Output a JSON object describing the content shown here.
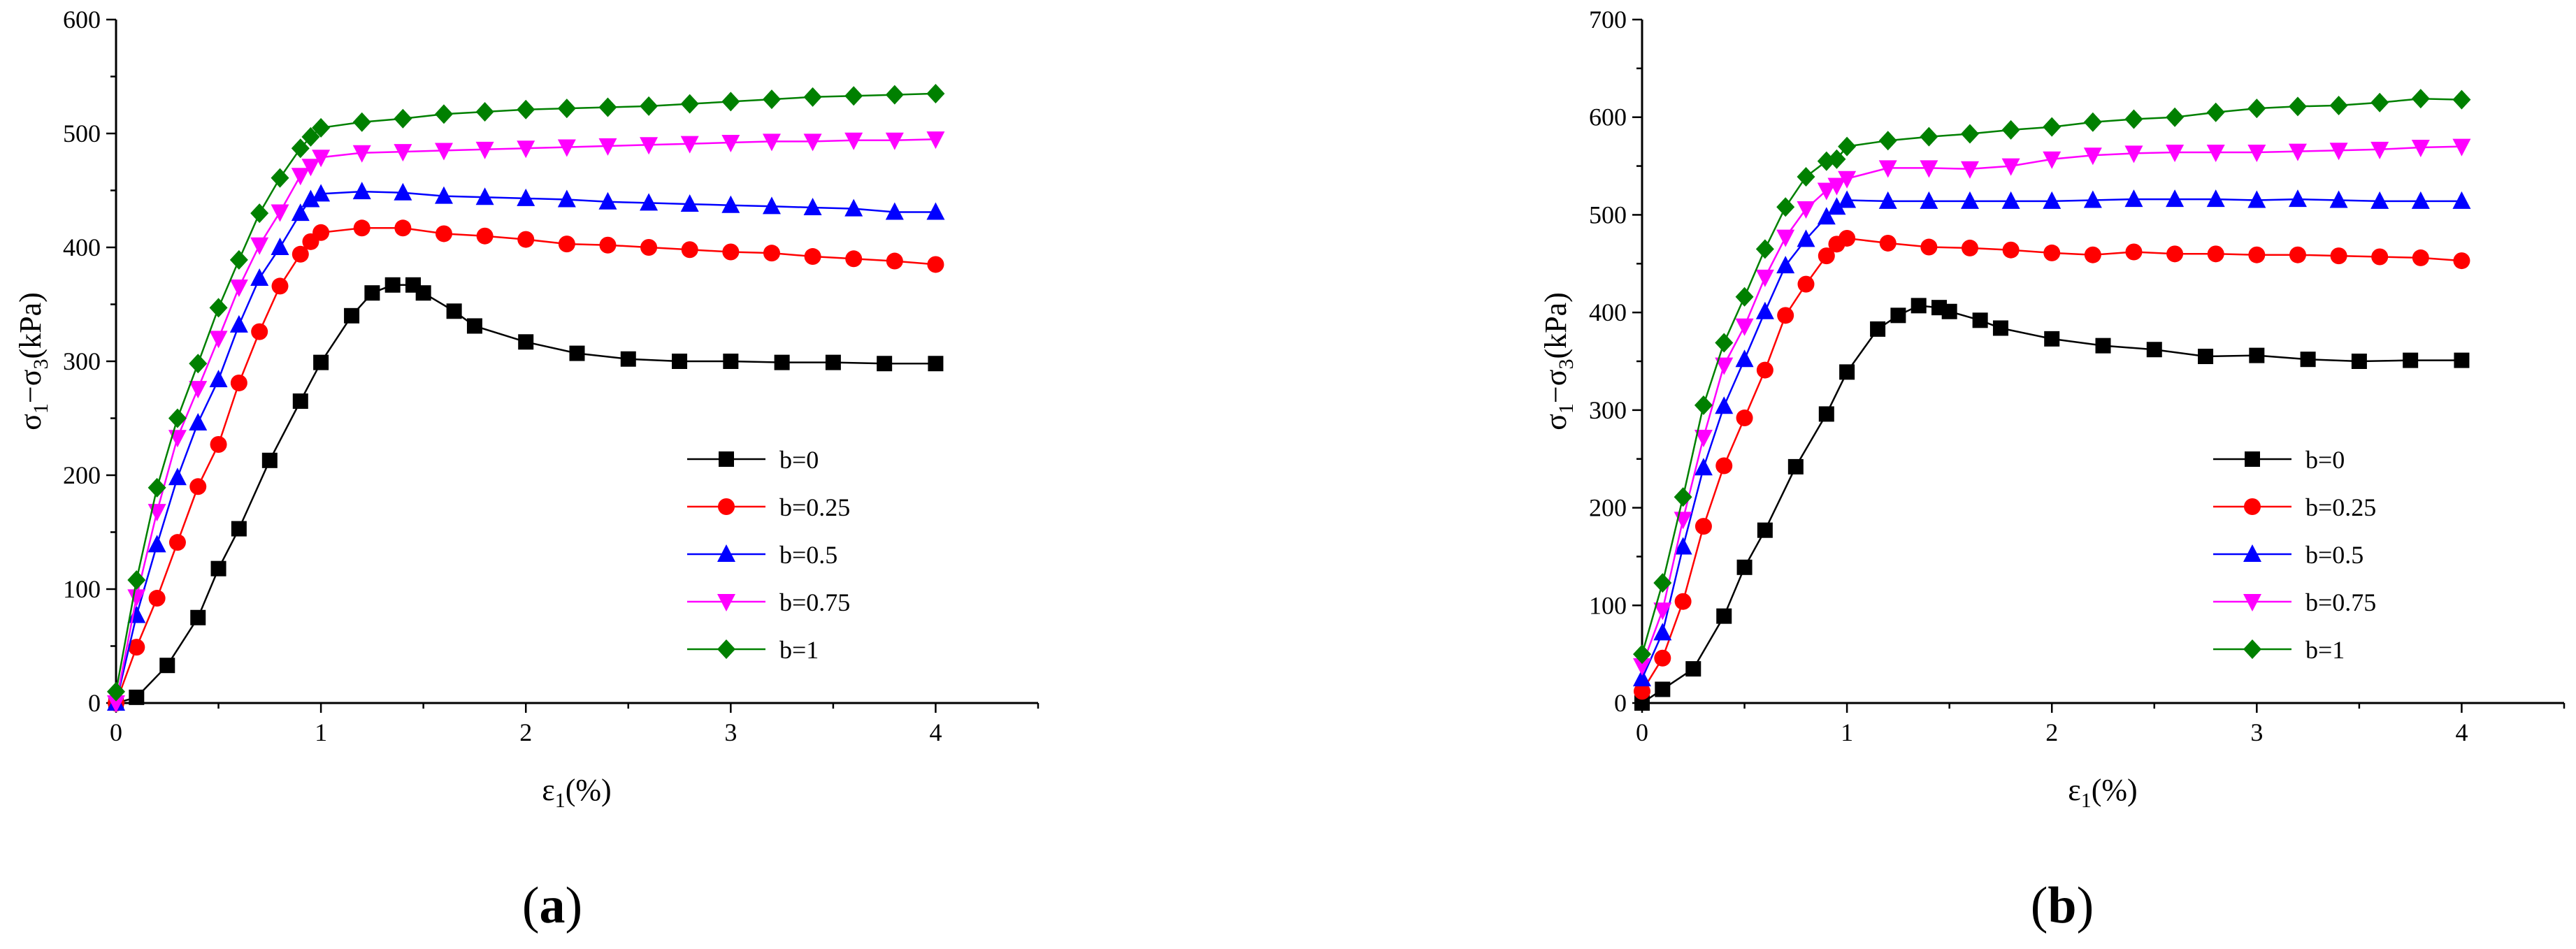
{
  "figure": {
    "panels": [
      {
        "label_open": "(",
        "label_letter": "a",
        "label_close": ")"
      },
      {
        "label_open": "(",
        "label_letter": "b",
        "label_close": ")"
      }
    ]
  },
  "axis_text": {
    "ylabel": {
      "sigma1": "σ",
      "sub1": "1",
      "minus": "−σ",
      "sub3": "3",
      "unit": "(kPa)"
    },
    "xlabel": {
      "eps": "ε",
      "sub1": "1",
      "unit": "(%)"
    }
  },
  "chart_data": [
    {
      "type": "line",
      "panel": "a",
      "xlim": [
        0,
        4.5
      ],
      "ylim": [
        0,
        600
      ],
      "xticks": [
        0,
        1,
        2,
        3,
        4
      ],
      "yticks": [
        0,
        100,
        200,
        300,
        400,
        500,
        600
      ],
      "xtick_labels": [
        "0",
        "1",
        "2",
        "3",
        "4"
      ],
      "ytick_labels": [
        "0",
        "100",
        "200",
        "300",
        "400",
        "500",
        "600"
      ],
      "xlabel": "ε1(%)",
      "ylabel": "σ1−σ3(kPa)",
      "legend": "right-middle",
      "series": [
        {
          "name": "b=0",
          "color": "#000000",
          "marker": "square",
          "x": [
            0,
            0.1,
            0.25,
            0.4,
            0.5,
            0.6,
            0.75,
            0.9,
            1.0,
            1.15,
            1.25,
            1.35,
            1.45,
            1.5,
            1.65,
            1.75,
            2.0,
            2.25,
            2.5,
            2.75,
            3.0,
            3.25,
            3.5,
            3.75,
            4.0
          ],
          "y": [
            0,
            5,
            33,
            75,
            118,
            153,
            213,
            265,
            299,
            340,
            360,
            367,
            367,
            360,
            344,
            331,
            317,
            307,
            302,
            300,
            300,
            299,
            299,
            298,
            298
          ]
        },
        {
          "name": "b=0.25",
          "color": "#ff0000",
          "marker": "circle",
          "x": [
            0,
            0.1,
            0.2,
            0.3,
            0.4,
            0.5,
            0.6,
            0.7,
            0.8,
            0.9,
            0.95,
            1.0,
            1.2,
            1.4,
            1.6,
            1.8,
            2.0,
            2.2,
            2.4,
            2.6,
            2.8,
            3.0,
            3.2,
            3.4,
            3.6,
            3.8,
            4.0
          ],
          "y": [
            0,
            49,
            92,
            141,
            190,
            227,
            281,
            326,
            366,
            394,
            405,
            413,
            417,
            417,
            412,
            410,
            407,
            403,
            402,
            400,
            398,
            396,
            395,
            392,
            390,
            388,
            385
          ]
        },
        {
          "name": "b=0.5",
          "color": "#0000ff",
          "marker": "triangle-up",
          "x": [
            0,
            0.1,
            0.2,
            0.3,
            0.4,
            0.5,
            0.6,
            0.7,
            0.8,
            0.9,
            0.95,
            1.0,
            1.2,
            1.4,
            1.6,
            1.8,
            2.0,
            2.2,
            2.4,
            2.6,
            2.8,
            3.0,
            3.2,
            3.4,
            3.6,
            3.8,
            4.0
          ],
          "y": [
            0,
            77,
            139,
            198,
            246,
            284,
            332,
            373,
            400,
            430,
            442,
            447,
            449,
            448,
            445,
            444,
            443,
            442,
            440,
            439,
            438,
            437,
            436,
            435,
            434,
            431,
            431
          ]
        },
        {
          "name": "b=0.75",
          "color": "#ff00ff",
          "marker": "triangle-down",
          "x": [
            0,
            0.1,
            0.2,
            0.3,
            0.4,
            0.5,
            0.6,
            0.7,
            0.8,
            0.9,
            0.95,
            1.0,
            1.2,
            1.4,
            1.6,
            1.8,
            2.0,
            2.2,
            2.4,
            2.6,
            2.8,
            3.0,
            3.2,
            3.4,
            3.6,
            3.8,
            4.0
          ],
          "y": [
            0,
            93,
            168,
            233,
            276,
            320,
            365,
            402,
            431,
            463,
            471,
            479,
            483,
            484,
            485,
            486,
            487,
            488,
            489,
            490,
            491,
            492,
            493,
            493,
            494,
            494,
            495
          ]
        },
        {
          "name": "b=1",
          "color": "#008000",
          "marker": "diamond",
          "x": [
            0,
            0.1,
            0.2,
            0.3,
            0.4,
            0.5,
            0.6,
            0.7,
            0.8,
            0.9,
            0.95,
            1.0,
            1.2,
            1.4,
            1.6,
            1.8,
            2.0,
            2.2,
            2.4,
            2.6,
            2.8,
            3.0,
            3.2,
            3.4,
            3.6,
            3.8,
            4.0
          ],
          "y": [
            10,
            108,
            189,
            250,
            298,
            347,
            389,
            430,
            461,
            487,
            497,
            505,
            510,
            513,
            517,
            519,
            521,
            522,
            523,
            524,
            526,
            528,
            530,
            532,
            533,
            534,
            535
          ]
        }
      ]
    },
    {
      "type": "line",
      "panel": "b",
      "xlim": [
        0,
        4.5
      ],
      "ylim": [
        0,
        700
      ],
      "xticks": [
        0,
        1,
        2,
        3,
        4
      ],
      "yticks": [
        0,
        100,
        200,
        300,
        400,
        500,
        600,
        700
      ],
      "xtick_labels": [
        "0",
        "1",
        "2",
        "3",
        "4"
      ],
      "ytick_labels": [
        "0",
        "100",
        "200",
        "300",
        "400",
        "500",
        "600",
        "700"
      ],
      "xlabel": "ε1(%)",
      "ylabel": "σ1−σ3(kPa)",
      "legend": "right-middle",
      "series": [
        {
          "name": "b=0",
          "color": "#000000",
          "marker": "square",
          "x": [
            0,
            0.1,
            0.25,
            0.4,
            0.5,
            0.6,
            0.75,
            0.9,
            1.0,
            1.15,
            1.25,
            1.35,
            1.45,
            1.5,
            1.65,
            1.75,
            2.0,
            2.25,
            2.5,
            2.75,
            3.0,
            3.25,
            3.5,
            3.75,
            4.0
          ],
          "y": [
            0,
            14,
            35,
            89,
            139,
            177,
            242,
            296,
            339,
            383,
            397,
            407,
            405,
            401,
            392,
            384,
            373,
            366,
            362,
            355,
            356,
            352,
            350,
            351,
            351
          ]
        },
        {
          "name": "b=0.25",
          "color": "#ff0000",
          "marker": "circle",
          "x": [
            0,
            0.1,
            0.2,
            0.3,
            0.4,
            0.5,
            0.6,
            0.7,
            0.8,
            0.9,
            0.95,
            1.0,
            1.2,
            1.4,
            1.6,
            1.8,
            2.0,
            2.2,
            2.4,
            2.6,
            2.8,
            3.0,
            3.2,
            3.4,
            3.6,
            3.8,
            4.0
          ],
          "y": [
            12,
            46,
            104,
            181,
            243,
            292,
            341,
            397,
            429,
            458,
            470,
            476,
            471,
            467,
            466,
            464,
            461,
            459,
            462,
            460,
            460,
            459,
            459,
            458,
            457,
            456,
            453
          ]
        },
        {
          "name": "b=0.5",
          "color": "#0000ff",
          "marker": "triangle-up",
          "x": [
            0,
            0.1,
            0.2,
            0.3,
            0.4,
            0.5,
            0.6,
            0.7,
            0.8,
            0.9,
            0.95,
            1.0,
            1.2,
            1.4,
            1.6,
            1.8,
            2.0,
            2.2,
            2.4,
            2.6,
            2.8,
            3.0,
            3.2,
            3.4,
            3.6,
            3.8,
            4.0
          ],
          "y": [
            25,
            72,
            160,
            241,
            304,
            352,
            401,
            448,
            475,
            498,
            508,
            515,
            514,
            514,
            514,
            514,
            514,
            515,
            516,
            516,
            516,
            515,
            516,
            515,
            514,
            514,
            514
          ]
        },
        {
          "name": "b=0.75",
          "color": "#ff00ff",
          "marker": "triangle-down",
          "x": [
            0,
            0.1,
            0.2,
            0.3,
            0.4,
            0.5,
            0.6,
            0.7,
            0.8,
            0.9,
            0.95,
            1.0,
            1.2,
            1.4,
            1.6,
            1.8,
            2.0,
            2.2,
            2.4,
            2.6,
            2.8,
            3.0,
            3.2,
            3.4,
            3.6,
            3.8,
            4.0
          ],
          "y": [
            38,
            95,
            188,
            272,
            346,
            386,
            436,
            477,
            506,
            525,
            530,
            537,
            548,
            548,
            547,
            550,
            557,
            561,
            563,
            564,
            564,
            564,
            565,
            566,
            567,
            569,
            570
          ]
        },
        {
          "name": "b=1",
          "color": "#008000",
          "marker": "diamond",
          "x": [
            0,
            0.1,
            0.2,
            0.3,
            0.4,
            0.5,
            0.6,
            0.7,
            0.8,
            0.9,
            0.95,
            1.0,
            1.2,
            1.4,
            1.6,
            1.8,
            2.0,
            2.2,
            2.4,
            2.6,
            2.8,
            3.0,
            3.2,
            3.4,
            3.6,
            3.8,
            4.0
          ],
          "y": [
            50,
            123,
            211,
            305,
            369,
            416,
            465,
            508,
            539,
            555,
            557,
            570,
            576,
            580,
            583,
            587,
            590,
            595,
            598,
            600,
            605,
            609,
            611,
            612,
            615,
            619,
            618
          ]
        }
      ]
    }
  ]
}
